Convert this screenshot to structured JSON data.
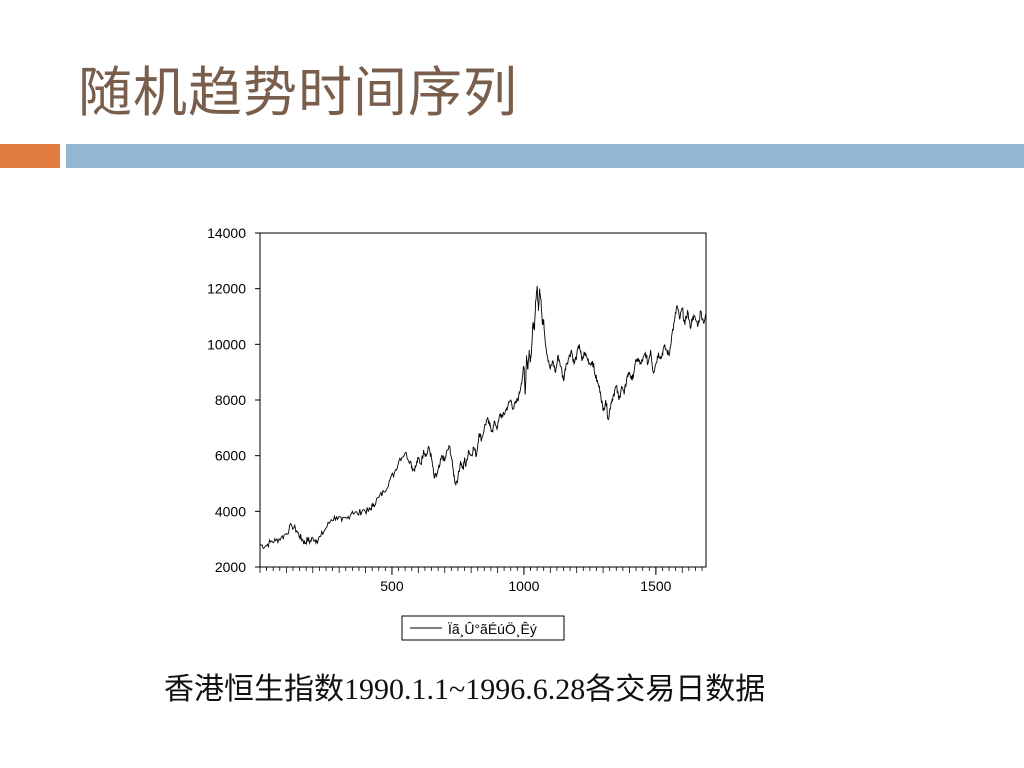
{
  "slide": {
    "title": "随机趋势时间序列",
    "caption": "香港恒生指数1990.1.1~1996.6.28各交易日数据"
  },
  "colors": {
    "title": "#7a5e4c",
    "accent_orange": "#e07b3f",
    "accent_blue": "#94b6d3",
    "line": "#000000"
  },
  "chart_data": {
    "type": "line",
    "title": "",
    "xlabel": "",
    "ylabel": "",
    "xlim": [
      0,
      1690
    ],
    "ylim": [
      2000,
      14000
    ],
    "x_ticks": [
      500,
      1000,
      1500
    ],
    "y_ticks": [
      2000,
      4000,
      6000,
      8000,
      10000,
      12000,
      14000
    ],
    "grid": false,
    "legend_position": "bottom",
    "series": [
      {
        "name": "Ïã¸Û°ãÉúÖ¸Êý",
        "x": [
          0,
          20,
          40,
          60,
          80,
          100,
          120,
          140,
          150,
          160,
          170,
          180,
          190,
          200,
          215,
          230,
          250,
          270,
          290,
          310,
          330,
          350,
          370,
          390,
          410,
          420,
          430,
          450,
          470,
          490,
          510,
          530,
          550,
          570,
          580,
          590,
          600,
          610,
          620,
          630,
          640,
          650,
          660,
          670,
          680,
          690,
          700,
          710,
          720,
          730,
          740,
          750,
          760,
          770,
          775,
          780,
          790,
          800,
          810,
          820,
          830,
          840,
          850,
          860,
          870,
          880,
          890,
          900,
          910,
          920,
          930,
          940,
          950,
          960,
          970,
          980,
          990,
          1000,
          1005,
          1010,
          1015,
          1020,
          1025,
          1030,
          1035,
          1040,
          1045,
          1050,
          1055,
          1060,
          1065,
          1070,
          1075,
          1080,
          1090,
          1100,
          1110,
          1120,
          1130,
          1140,
          1150,
          1160,
          1170,
          1180,
          1190,
          1200,
          1210,
          1220,
          1230,
          1240,
          1250,
          1260,
          1270,
          1280,
          1290,
          1300,
          1310,
          1320,
          1330,
          1340,
          1350,
          1360,
          1370,
          1380,
          1390,
          1400,
          1410,
          1420,
          1430,
          1440,
          1450,
          1460,
          1470,
          1480,
          1490,
          1500,
          1510,
          1520,
          1530,
          1540,
          1550,
          1560,
          1570,
          1580,
          1590,
          1600,
          1610,
          1620,
          1630,
          1640,
          1650,
          1660,
          1670,
          1680,
          1690
        ],
        "values": [
          2800,
          2750,
          2900,
          2950,
          3050,
          3200,
          3500,
          3300,
          3100,
          3000,
          2850,
          3000,
          2900,
          3050,
          2950,
          3100,
          3400,
          3700,
          3800,
          3650,
          3750,
          4000,
          3900,
          4050,
          4000,
          4100,
          4250,
          4500,
          4700,
          5100,
          5400,
          5900,
          6100,
          5800,
          5500,
          5600,
          5900,
          5700,
          6200,
          6000,
          6300,
          5900,
          5200,
          5300,
          5600,
          6000,
          5800,
          6200,
          6300,
          5600,
          5000,
          5200,
          5800,
          5500,
          5900,
          5600,
          6200,
          6000,
          6300,
          6000,
          6800,
          6600,
          7000,
          7300,
          7100,
          6900,
          7200,
          7000,
          7500,
          7400,
          7600,
          7800,
          8000,
          7700,
          7900,
          8100,
          8600,
          9200,
          8200,
          9600,
          9100,
          9800,
          9400,
          10000,
          10800,
          10500,
          11600,
          12100,
          11200,
          12000,
          11600,
          10700,
          10900,
          10200,
          9500,
          9100,
          9400,
          9000,
          9600,
          9200,
          8700,
          9300,
          9500,
          9800,
          9300,
          9600,
          10000,
          9400,
          9700,
          9500,
          9300,
          9400,
          8900,
          8600,
          8300,
          7600,
          8000,
          7300,
          7900,
          8200,
          8500,
          8000,
          8500,
          8200,
          8800,
          9000,
          8700,
          9200,
          9500,
          9300,
          9400,
          9700,
          9300,
          9800,
          9000,
          9300,
          9700,
          9500,
          9900,
          9800,
          9600,
          10300,
          10800,
          11400,
          10900,
          11300,
          10700,
          11200,
          10600,
          11000,
          10900,
          10700,
          11200,
          10800,
          11000
        ]
      }
    ]
  }
}
